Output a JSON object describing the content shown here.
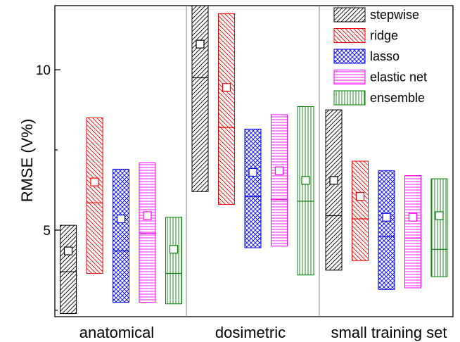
{
  "chart_data": {
    "type": "box",
    "title": "",
    "xlabel": "",
    "ylabel": "RMSE (V%)",
    "ylim": [
      2.3,
      12.0
    ],
    "yticks": [
      5,
      10
    ],
    "yticks_minor": [
      2.5,
      7.5
    ],
    "grid": false,
    "legend_position": "top-right",
    "categories": [
      "anatomical",
      "dosimetric",
      "small training set"
    ],
    "series": [
      {
        "name": "stepwise",
        "color": "#000000",
        "pattern": "diagonal-up",
        "boxes": [
          {
            "low": 2.4,
            "high": 5.15,
            "median": 3.7,
            "mean": 4.35
          },
          {
            "low": 6.2,
            "high": 12.0,
            "median": 9.75,
            "mean": 10.8
          },
          {
            "low": 3.75,
            "high": 8.75,
            "median": 5.45,
            "mean": 6.55
          }
        ]
      },
      {
        "name": "ridge",
        "color": "#ff0000",
        "pattern": "diagonal-down",
        "boxes": [
          {
            "low": 3.65,
            "high": 8.5,
            "median": 5.85,
            "mean": 6.5
          },
          {
            "low": 5.8,
            "high": 11.75,
            "median": 8.2,
            "mean": 9.45
          },
          {
            "low": 4.05,
            "high": 7.15,
            "median": 5.35,
            "mean": 6.05
          }
        ]
      },
      {
        "name": "lasso",
        "color": "#0000ff",
        "pattern": "crosshatch",
        "boxes": [
          {
            "low": 2.75,
            "high": 6.9,
            "median": 4.35,
            "mean": 5.35
          },
          {
            "low": 4.45,
            "high": 8.15,
            "median": 6.05,
            "mean": 6.8
          },
          {
            "low": 3.15,
            "high": 6.85,
            "median": 4.8,
            "mean": 5.4
          }
        ]
      },
      {
        "name": "elastic net",
        "color": "#ff00ff",
        "pattern": "horizontal",
        "boxes": [
          {
            "low": 2.75,
            "high": 7.1,
            "median": 4.9,
            "mean": 5.45
          },
          {
            "low": 4.5,
            "high": 8.6,
            "median": 5.95,
            "mean": 6.85
          },
          {
            "low": 3.2,
            "high": 6.7,
            "median": 4.75,
            "mean": 5.4
          }
        ]
      },
      {
        "name": "ensemble",
        "color": "#008000",
        "pattern": "vertical",
        "boxes": [
          {
            "low": 2.7,
            "high": 5.4,
            "median": 3.65,
            "mean": 4.4
          },
          {
            "low": 3.6,
            "high": 8.85,
            "median": 5.9,
            "mean": 6.55
          },
          {
            "low": 3.55,
            "high": 6.6,
            "median": 4.4,
            "mean": 5.45
          }
        ]
      }
    ]
  }
}
